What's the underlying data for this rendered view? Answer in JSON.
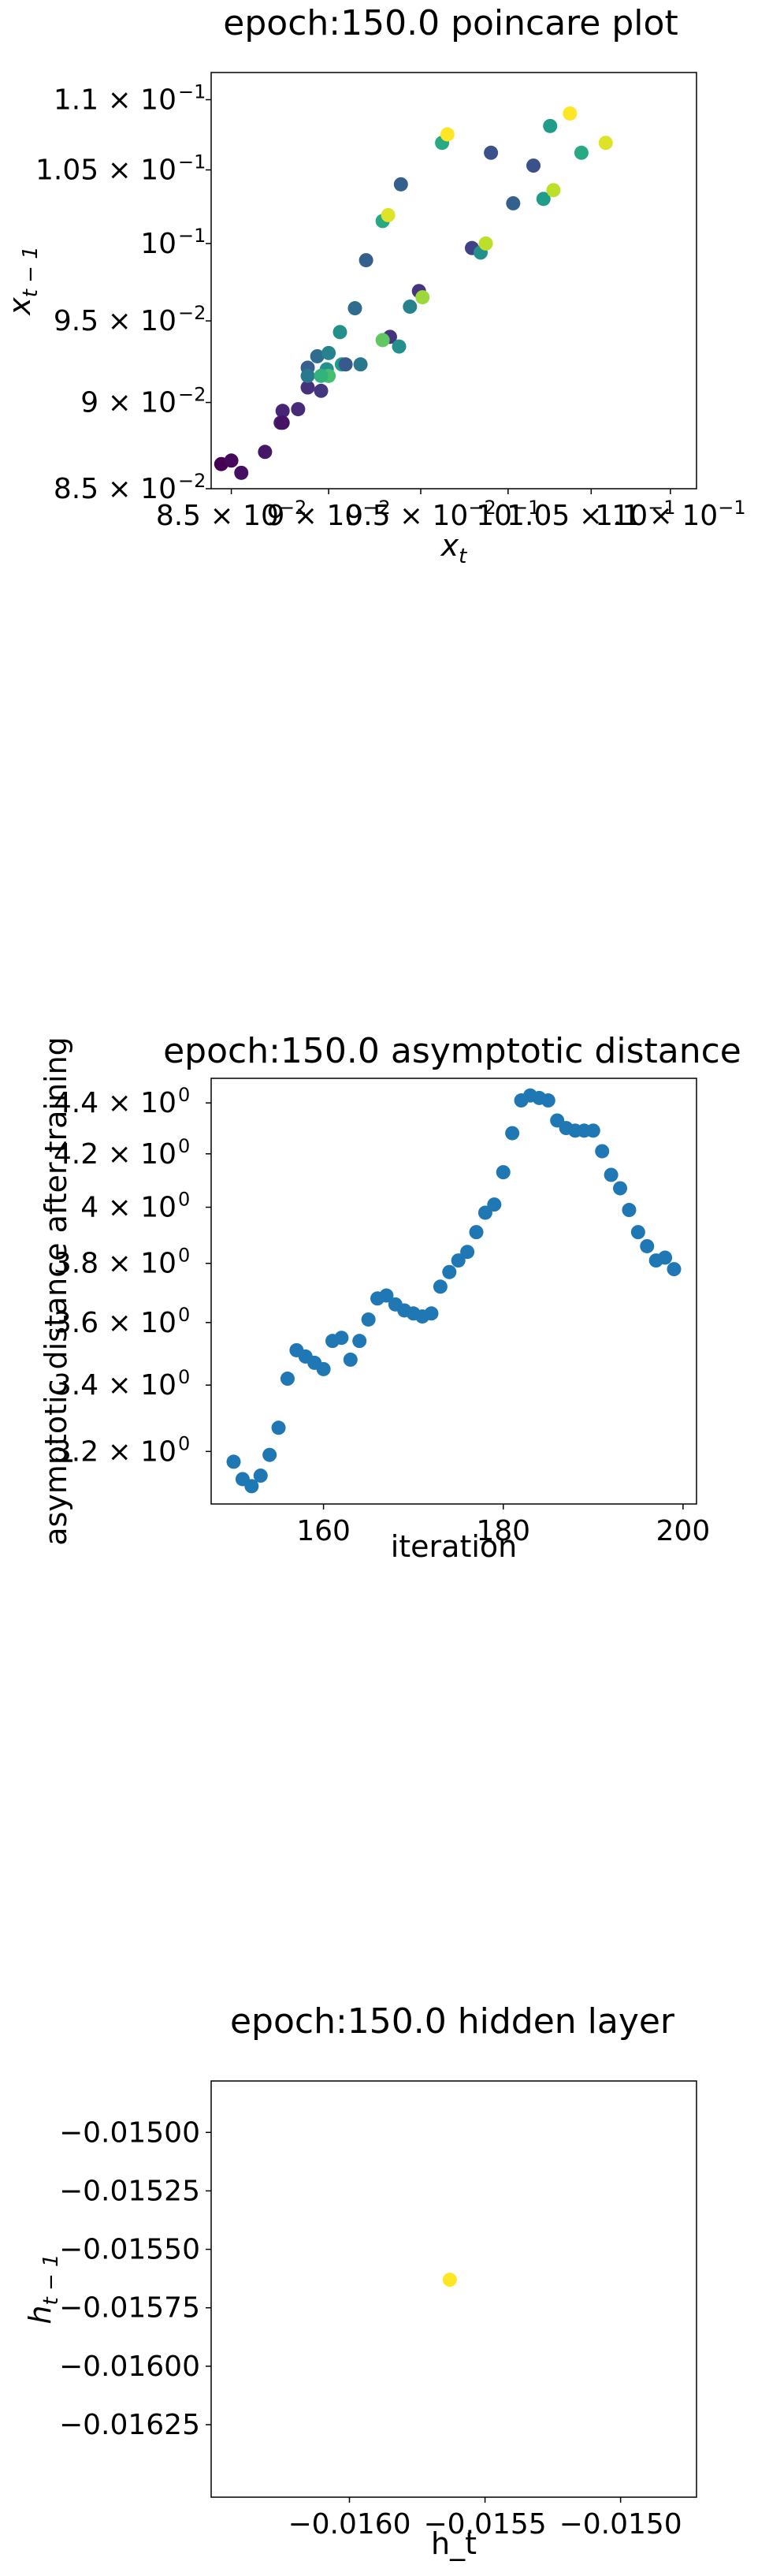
{
  "chart_data": [
    {
      "type": "scatter",
      "title": "epoch:150.0 poincare plot",
      "xlabel": "x",
      "xlabel_sub": "t",
      "ylabel": "x",
      "ylabel_sub": "t − 1",
      "scale": "log",
      "xlim": [
        0.084,
        0.1117
      ],
      "ylim": [
        0.085,
        0.112
      ],
      "x_ticks": [
        {
          "v": 0.085,
          "label": "8.5 × 10",
          "exp": "−2"
        },
        {
          "v": 0.09,
          "label": "9 × 10",
          "exp": "−2"
        },
        {
          "v": 0.095,
          "label": "9.5 × 10",
          "exp": "−2"
        },
        {
          "v": 0.1,
          "label": "10",
          "exp": "−1"
        },
        {
          "v": 0.105,
          "label": "1.05 × 10",
          "exp": "−1"
        },
        {
          "v": 0.11,
          "label": "1.1 × 10",
          "exp": "−1"
        }
      ],
      "y_ticks": [
        {
          "v": 0.085,
          "label": "8.5 × 10",
          "exp": "−2"
        },
        {
          "v": 0.09,
          "label": "9 × 10",
          "exp": "−2"
        },
        {
          "v": 0.095,
          "label": "9.5 × 10",
          "exp": "−2"
        },
        {
          "v": 0.1,
          "label": "10",
          "exp": "−1"
        },
        {
          "v": 0.105,
          "label": "1.05 × 10",
          "exp": "−1"
        },
        {
          "v": 0.11,
          "label": "1.1 × 10",
          "exp": "−1"
        }
      ],
      "colormap": "viridis",
      "points": [
        {
          "x": 0.0845,
          "y": 0.0864,
          "c": 0.0
        },
        {
          "x": 0.085,
          "y": 0.0866,
          "c": 0.02
        },
        {
          "x": 0.0855,
          "y": 0.0859,
          "c": 0.04
        },
        {
          "x": 0.0867,
          "y": 0.0871,
          "c": 0.06
        },
        {
          "x": 0.0875,
          "y": 0.0888,
          "c": 0.08
        },
        {
          "x": 0.0876,
          "y": 0.0895,
          "c": 0.1
        },
        {
          "x": 0.0884,
          "y": 0.0896,
          "c": 0.12
        },
        {
          "x": 0.0889,
          "y": 0.0909,
          "c": 0.14
        },
        {
          "x": 0.0896,
          "y": 0.0907,
          "c": 0.16
        },
        {
          "x": 0.0889,
          "y": 0.0921,
          "c": 0.3
        },
        {
          "x": 0.0894,
          "y": 0.0928,
          "c": 0.35
        },
        {
          "x": 0.0889,
          "y": 0.0916,
          "c": 0.4
        },
        {
          "x": 0.09,
          "y": 0.093,
          "c": 0.45
        },
        {
          "x": 0.0906,
          "y": 0.0943,
          "c": 0.5
        },
        {
          "x": 0.0907,
          "y": 0.0923,
          "c": 0.55
        },
        {
          "x": 0.0909,
          "y": 0.0923,
          "c": 0.28
        },
        {
          "x": 0.0914,
          "y": 0.0958,
          "c": 0.35
        },
        {
          "x": 0.092,
          "y": 0.0989,
          "c": 0.3
        },
        {
          "x": 0.0933,
          "y": 0.094,
          "c": 0.15
        },
        {
          "x": 0.0929,
          "y": 0.0938,
          "c": 0.75
        },
        {
          "x": 0.0929,
          "y": 0.1015,
          "c": 0.6
        },
        {
          "x": 0.0932,
          "y": 0.1019,
          "c": 0.95
        },
        {
          "x": 0.0939,
          "y": 0.104,
          "c": 0.3
        },
        {
          "x": 0.0938,
          "y": 0.0934,
          "c": 0.5
        },
        {
          "x": 0.0944,
          "y": 0.0959,
          "c": 0.45
        },
        {
          "x": 0.0949,
          "y": 0.0969,
          "c": 0.15
        },
        {
          "x": 0.0951,
          "y": 0.0965,
          "c": 0.85
        },
        {
          "x": 0.0962,
          "y": 0.1069,
          "c": 0.6
        },
        {
          "x": 0.0965,
          "y": 0.1075,
          "c": 1.0
        },
        {
          "x": 0.0979,
          "y": 0.0997,
          "c": 0.2
        },
        {
          "x": 0.0984,
          "y": 0.0994,
          "c": 0.5
        },
        {
          "x": 0.0987,
          "y": 0.1,
          "c": 0.9
        },
        {
          "x": 0.099,
          "y": 0.1062,
          "c": 0.25
        },
        {
          "x": 0.1003,
          "y": 0.1027,
          "c": 0.3
        },
        {
          "x": 0.1015,
          "y": 0.1053,
          "c": 0.25
        },
        {
          "x": 0.1021,
          "y": 0.103,
          "c": 0.55
        },
        {
          "x": 0.1027,
          "y": 0.1036,
          "c": 0.9
        },
        {
          "x": 0.1025,
          "y": 0.1081,
          "c": 0.55
        },
        {
          "x": 0.1037,
          "y": 0.109,
          "c": 1.0
        },
        {
          "x": 0.1044,
          "y": 0.1062,
          "c": 0.6
        },
        {
          "x": 0.1059,
          "y": 0.1069,
          "c": 0.95
        },
        {
          "x": 0.0876,
          "y": 0.0888,
          "c": 0.05
        },
        {
          "x": 0.0899,
          "y": 0.092,
          "c": 0.5
        },
        {
          "x": 0.0917,
          "y": 0.0923,
          "c": 0.4
        },
        {
          "x": 0.09,
          "y": 0.0916,
          "c": 0.7
        },
        {
          "x": 0.0896,
          "y": 0.0916,
          "c": 0.65
        }
      ]
    },
    {
      "type": "scatter",
      "title": "epoch:150.0 asymptotic distance",
      "xlabel": "iteration",
      "ylabel": "asymptotic distance after training",
      "scale": "log-y",
      "xlim": [
        147.5,
        201.5
      ],
      "ylim": [
        3.05,
        4.5
      ],
      "x_ticks": [
        {
          "v": 160,
          "label": "160"
        },
        {
          "v": 180,
          "label": "180"
        },
        {
          "v": 200,
          "label": "200"
        }
      ],
      "y_ticks": [
        {
          "v": 3.2,
          "label": "3.2 × 10",
          "exp": "0"
        },
        {
          "v": 3.4,
          "label": "3.4 × 10",
          "exp": "0"
        },
        {
          "v": 3.6,
          "label": "3.6 × 10",
          "exp": "0"
        },
        {
          "v": 3.8,
          "label": "3.8 × 10",
          "exp": "0"
        },
        {
          "v": 4.0,
          "label": "4 × 10",
          "exp": "0"
        },
        {
          "v": 4.2,
          "label": "4.2 × 10",
          "exp": "0"
        },
        {
          "v": 4.4,
          "label": "4.4 × 10",
          "exp": "0"
        }
      ],
      "color": "#1f77b4",
      "x": [
        150,
        151,
        152,
        153,
        154,
        155,
        156,
        157,
        158,
        159,
        160,
        161,
        162,
        163,
        164,
        165,
        166,
        167,
        168,
        169,
        170,
        171,
        172,
        173,
        174,
        175,
        176,
        177,
        178,
        179,
        180,
        181,
        182,
        183,
        184,
        185,
        186,
        187,
        188,
        189,
        190,
        191,
        192,
        193,
        194,
        195,
        196,
        197,
        198,
        199
      ],
      "y": [
        3.17,
        3.12,
        3.1,
        3.13,
        3.19,
        3.27,
        3.42,
        3.51,
        3.49,
        3.47,
        3.45,
        3.54,
        3.55,
        3.48,
        3.54,
        3.61,
        3.68,
        3.69,
        3.66,
        3.64,
        3.63,
        3.62,
        3.63,
        3.72,
        3.77,
        3.81,
        3.84,
        3.91,
        3.98,
        4.01,
        4.13,
        4.28,
        4.41,
        4.43,
        4.42,
        4.41,
        4.33,
        4.3,
        4.29,
        4.29,
        4.29,
        4.21,
        4.12,
        4.07,
        3.99,
        3.91,
        3.86,
        3.81,
        3.82,
        3.78
      ]
    },
    {
      "type": "scatter",
      "title": "epoch:150.0 hidden layer",
      "xlabel": "h_t",
      "ylabel": "h",
      "ylabel_sub": "t − 1",
      "xlim": [
        -0.01651,
        -0.01472
      ],
      "ylim": [
        -0.01656,
        -0.01478
      ],
      "x_ticks": [
        {
          "v": -0.016,
          "label": "−0.0160"
        },
        {
          "v": -0.0155,
          "label": "−0.0155"
        },
        {
          "v": -0.015,
          "label": "−0.0150"
        }
      ],
      "y_ticks": [
        {
          "v": -0.015,
          "label": "−0.01500"
        },
        {
          "v": -0.01525,
          "label": "−0.01525"
        },
        {
          "v": -0.0155,
          "label": "−0.01550"
        },
        {
          "v": -0.01575,
          "label": "−0.01575"
        },
        {
          "v": -0.016,
          "label": "−0.01600"
        },
        {
          "v": -0.01625,
          "label": "−0.01625"
        }
      ],
      "color": "#fde725",
      "points": [
        {
          "x": -0.01563,
          "y": -0.01563
        }
      ]
    }
  ]
}
